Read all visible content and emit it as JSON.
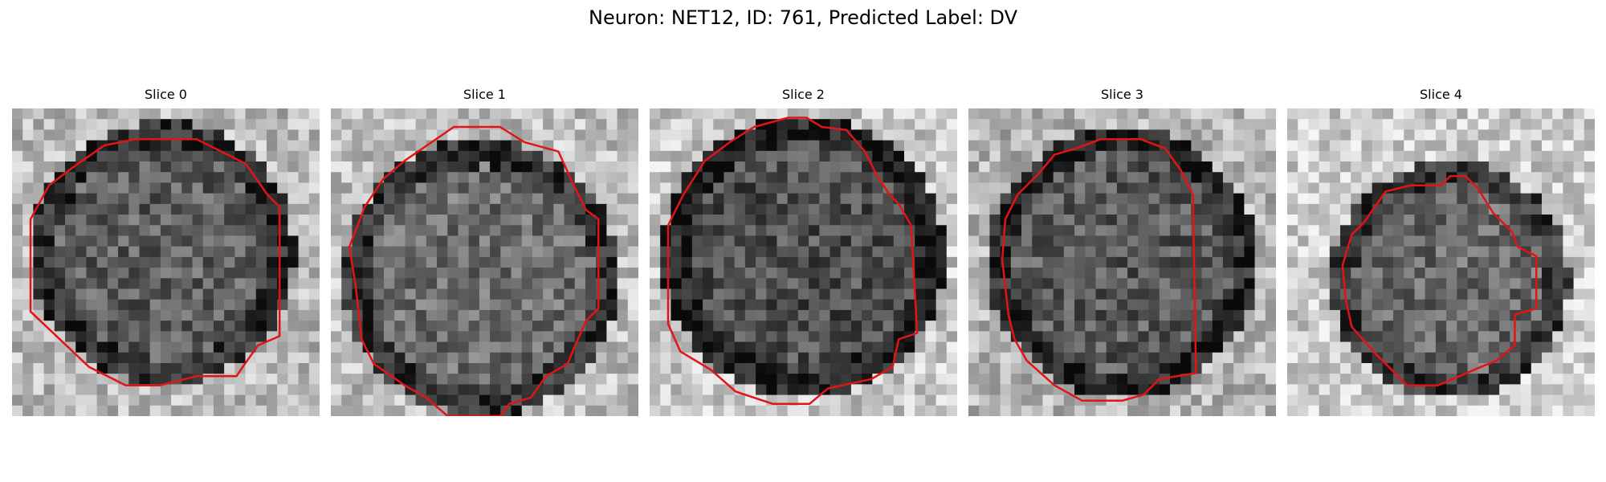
{
  "figure": {
    "title": "Neuron: NET12, ID: 761, Predicted Label: DV",
    "contour_color": "#e41414"
  },
  "panels": [
    {
      "title": "Slice 0"
    },
    {
      "title": "Slice 1"
    },
    {
      "title": "Slice 2"
    },
    {
      "title": "Slice 3"
    },
    {
      "title": "Slice 4"
    }
  ]
}
